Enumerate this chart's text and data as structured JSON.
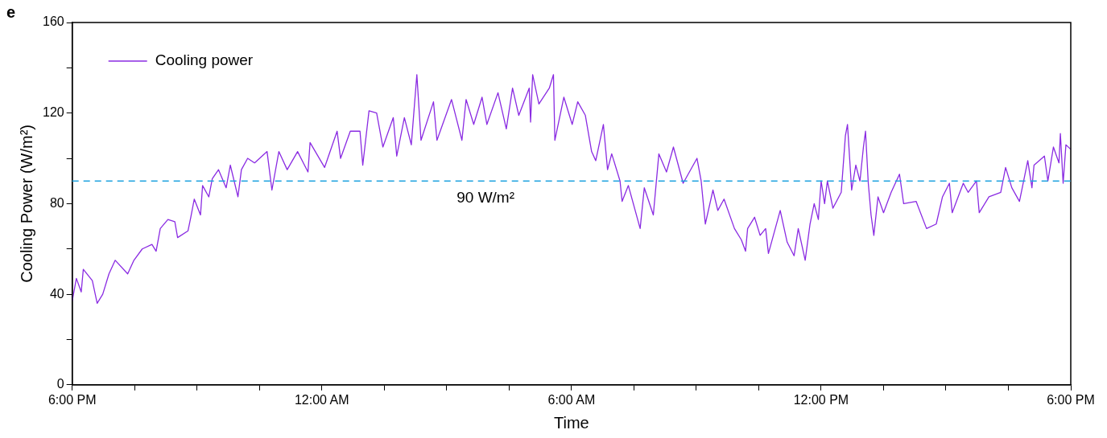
{
  "chart_data": {
    "type": "line",
    "xlabel": "Time",
    "ylabel": "Cooling Power (W/m²)",
    "annotations": [
      "e"
    ],
    "legend": "top left",
    "grid": false,
    "marker": "none",
    "line_style": "solid",
    "xlim": [
      "--01-01T18:00",
      "--01-02T18:00"
    ],
    "ylim": [
      0,
      160
    ],
    "xticks": [
      {
        "value": "--01-01T18:00",
        "label": "6:00 PM"
      },
      {
        "value": "--01-01T19:30",
        "label": null
      },
      {
        "value": "--01-01T21:00",
        "label": null
      },
      {
        "value": "--01-01T22:30",
        "label": null
      },
      {
        "value": "--01-02T00:00",
        "label": "12:00 AM"
      },
      {
        "value": "--01-02T01:30",
        "label": null
      },
      {
        "value": "--01-02T03:00",
        "label": null
      },
      {
        "value": "--01-02T04:30",
        "label": null
      },
      {
        "value": "--01-02T06:00",
        "label": "6:00 AM"
      },
      {
        "value": "--01-02T07:30",
        "label": null
      },
      {
        "value": "--01-02T09:00",
        "label": null
      },
      {
        "value": "--01-02T10:30",
        "label": null
      },
      {
        "value": "--01-02T12:00",
        "label": "12:00 PM"
      },
      {
        "value": "--01-02T13:30",
        "label": null
      },
      {
        "value": "--01-02T15:00",
        "label": null
      },
      {
        "value": "--01-02T16:30",
        "label": null
      },
      {
        "value": "--01-02T18:00",
        "label": "6:00 PM"
      }
    ],
    "yticks": [
      0,
      {
        "value": 20,
        "label": null
      },
      40,
      {
        "value": 60,
        "label": null
      },
      80,
      {
        "value": 100,
        "label": null
      },
      120,
      {
        "value": 140,
        "label": null
      },
      160
    ],
    "ref_lines": [
      {
        "axis": "y",
        "value": 90,
        "label": "90 W/m²",
        "color": "#1fa3e0",
        "line_style": "dashed"
      }
    ],
    "series": [
      {
        "name": "Cooling power",
        "color": "#8a2be2",
        "x": [
          "--01-01T18:00",
          "--01-01T18:06",
          "--01-01T18:13",
          "--01-01T18:16",
          "--01-01T18:29",
          "--01-01T18:36",
          "--01-01T18:44",
          "--01-01T18:53",
          "--01-01T19:02",
          "--01-01T19:20",
          "--01-01T19:29",
          "--01-01T19:41",
          "--01-01T19:55",
          "--01-01T20:01",
          "--01-01T20:07",
          "--01-01T20:18",
          "--01-01T20:28",
          "--01-01T20:32",
          "--01-01T20:47",
          "--01-01T20:51",
          "--01-01T20:56",
          "--01-01T21:05",
          "--01-01T21:08",
          "--01-01T21:17",
          "--01-01T21:22",
          "--01-01T21:31",
          "--01-01T21:42",
          "--01-01T21:48",
          "--01-01T21:59",
          "--01-01T22:04",
          "--01-01T22:13",
          "--01-01T22:23",
          "--01-01T22:41",
          "--01-01T22:48",
          "--01-01T22:58",
          "--01-01T23:10",
          "--01-01T23:25",
          "--01-01T23:40",
          "--01-01T23:43",
          "--01-02T00:04",
          "--01-02T00:22",
          "--01-02T00:27",
          "--01-02T00:41",
          "--01-02T00:55",
          "--01-02T00:59",
          "--01-02T01:08",
          "--01-02T01:19",
          "--01-02T01:28",
          "--01-02T01:43",
          "--01-02T01:48",
          "--01-02T01:59",
          "--01-02T02:09",
          "--01-02T02:17",
          "--01-02T02:23",
          "--01-02T02:41",
          "--01-02T02:46",
          "--01-02T03:07",
          "--01-02T03:22",
          "--01-02T03:28",
          "--01-02T03:39",
          "--01-02T03:51",
          "--01-02T03:58",
          "--01-02T04:14",
          "--01-02T04:26",
          "--01-02T04:35",
          "--01-02T04:44",
          "--01-02T04:59",
          "--01-02T05:01",
          "--01-02T05:04",
          "--01-02T05:13",
          "--01-02T05:28",
          "--01-02T05:34",
          "--01-02T05:36",
          "--01-02T05:49",
          "--01-02T06:01",
          "--01-02T06:09",
          "--01-02T06:20",
          "--01-02T06:29",
          "--01-02T06:35",
          "--01-02T06:46",
          "--01-02T06:52",
          "--01-02T06:58",
          "--01-02T07:10",
          "--01-02T07:13",
          "--01-02T07:22",
          "--01-02T07:39",
          "--01-02T07:45",
          "--01-02T07:58",
          "--01-02T08:06",
          "--01-02T08:17",
          "--01-02T08:27",
          "--01-02T08:41",
          "--01-02T09:01",
          "--01-02T09:07",
          "--01-02T09:13",
          "--01-02T09:24",
          "--01-02T09:31",
          "--01-02T09:40",
          "--01-02T09:55",
          "--01-02T10:05",
          "--01-02T10:11",
          "--01-02T10:14",
          "--01-02T10:24",
          "--01-02T10:32",
          "--01-02T10:40",
          "--01-02T10:44",
          "--01-02T11:01",
          "--01-02T11:11",
          "--01-02T11:21",
          "--01-02T11:27",
          "--01-02T11:37",
          "--01-02T11:44",
          "--01-02T11:50",
          "--01-02T11:56",
          "--01-02T12:00",
          "--01-02T12:05",
          "--01-02T12:09",
          "--01-02T12:17",
          "--01-02T12:29",
          "--01-02T12:35",
          "--01-02T12:38",
          "--01-02T12:44",
          "--01-02T12:50",
          "--01-02T12:56",
          "--01-02T13:01",
          "--01-02T13:04",
          "--01-02T13:08",
          "--01-02T13:12",
          "--01-02T13:16",
          "--01-02T13:22",
          "--01-02T13:30",
          "--01-02T13:41",
          "--01-02T13:53",
          "--01-02T13:59",
          "--01-02T14:17",
          "--01-02T14:32",
          "--01-02T14:46",
          "--01-02T14:55",
          "--01-02T15:05",
          "--01-02T15:09",
          "--01-02T15:25",
          "--01-02T15:32",
          "--01-02T15:44",
          "--01-02T15:48",
          "--01-02T16:02",
          "--01-02T16:19",
          "--01-02T16:26",
          "--01-02T16:35",
          "--01-02T16:46",
          "--01-02T16:58",
          "--01-02T17:04",
          "--01-02T17:07",
          "--01-02T17:22",
          "--01-02T17:27",
          "--01-02T17:35",
          "--01-02T17:43",
          "--01-02T17:45",
          "--01-02T17:49",
          "--01-02T17:53",
          "--01-02T18:00"
        ],
        "values": [
          37,
          47,
          41,
          51,
          46,
          36,
          40,
          49,
          55,
          49,
          55,
          60,
          62,
          59,
          69,
          73,
          72,
          65,
          68,
          74,
          82,
          75,
          88,
          83,
          91,
          95,
          87,
          97,
          83,
          95,
          100,
          98,
          103,
          86,
          103,
          95,
          103,
          94,
          107,
          96,
          112,
          100,
          112,
          112,
          97,
          121,
          120,
          105,
          118,
          101,
          118,
          106,
          137,
          108,
          125,
          108,
          126,
          108,
          126,
          115,
          127,
          115,
          129,
          113,
          131,
          119,
          131,
          116,
          137,
          124,
          131,
          137,
          108,
          127,
          115,
          125,
          119,
          103,
          99,
          115,
          95,
          102,
          90,
          81,
          88,
          69,
          87,
          75,
          102,
          94,
          105,
          89,
          100,
          90,
          71,
          86,
          77,
          82,
          69,
          64,
          59,
          69,
          74,
          66,
          69,
          58,
          77,
          63,
          57,
          69,
          55,
          71,
          80,
          73,
          90,
          80,
          90,
          78,
          85,
          110,
          115,
          86,
          97,
          90,
          105,
          112,
          89,
          75,
          66,
          83,
          76,
          85,
          93,
          80,
          81,
          69,
          71,
          83,
          89,
          76,
          89,
          85,
          90,
          76,
          83,
          85,
          96,
          87,
          81,
          99,
          87,
          97,
          101,
          90,
          105,
          98,
          111,
          89,
          106,
          104
        ]
      }
    ]
  }
}
